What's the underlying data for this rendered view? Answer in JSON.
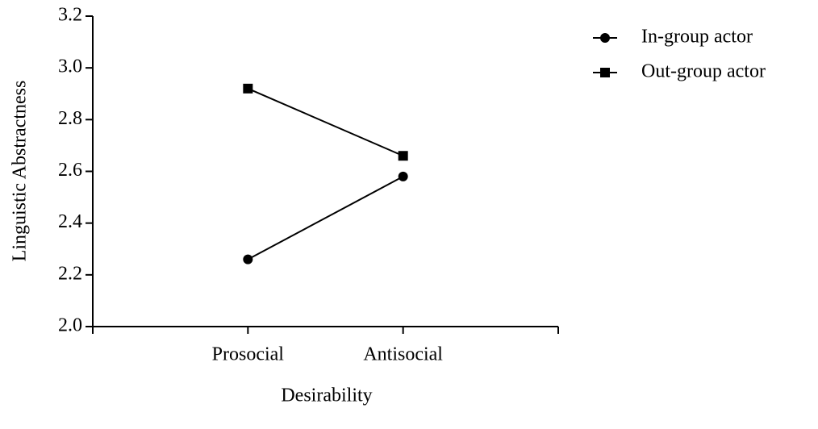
{
  "chart_data": {
    "type": "line",
    "x_label": "Desirability",
    "y_label": "Linguistic Abstractness",
    "categories": [
      "Prosocial",
      "Antisocial"
    ],
    "series": [
      {
        "name": "In-group actor",
        "color": "#000000",
        "marker": "circle",
        "values": [
          2.26,
          2.58
        ]
      },
      {
        "name": "Out-group actor",
        "color": "#000000",
        "marker": "square",
        "values": [
          2.92,
          2.66
        ]
      }
    ],
    "ylim": [
      2.0,
      3.2
    ],
    "yticks": [
      {
        "value": 2.0,
        "label": "2.0"
      },
      2.2,
      2.4,
      2.6,
      2.8,
      {
        "value": 3.0,
        "label": "3.0"
      },
      3.2
    ],
    "legend": "top-right"
  }
}
